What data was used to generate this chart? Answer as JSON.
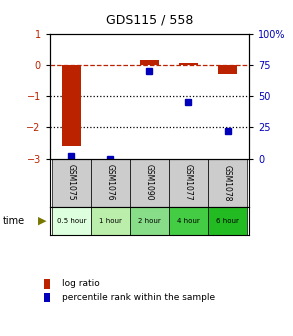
{
  "title": "GDS115 / 558",
  "samples": [
    "GSM1075",
    "GSM1076",
    "GSM1090",
    "GSM1077",
    "GSM1078"
  ],
  "time_labels": [
    "0.5 hour",
    "1 hour",
    "2 hour",
    "4 hour",
    "6 hour"
  ],
  "time_colors": [
    "#ddffdd",
    "#bbeeaa",
    "#88dd88",
    "#44cc44",
    "#22bb22"
  ],
  "log_ratio": [
    -2.6,
    0.0,
    0.15,
    0.05,
    -0.3
  ],
  "percentile": [
    2,
    0,
    70,
    45,
    22
  ],
  "ylim_left": [
    -3,
    1
  ],
  "ylim_right": [
    0,
    100
  ],
  "bar_color": "#bb2200",
  "dot_color": "#0000bb",
  "dotted_lines": [
    -1,
    -2
  ],
  "sample_bg": "#cccccc",
  "legend_log_ratio": "log ratio",
  "legend_percentile": "percentile rank within the sample"
}
